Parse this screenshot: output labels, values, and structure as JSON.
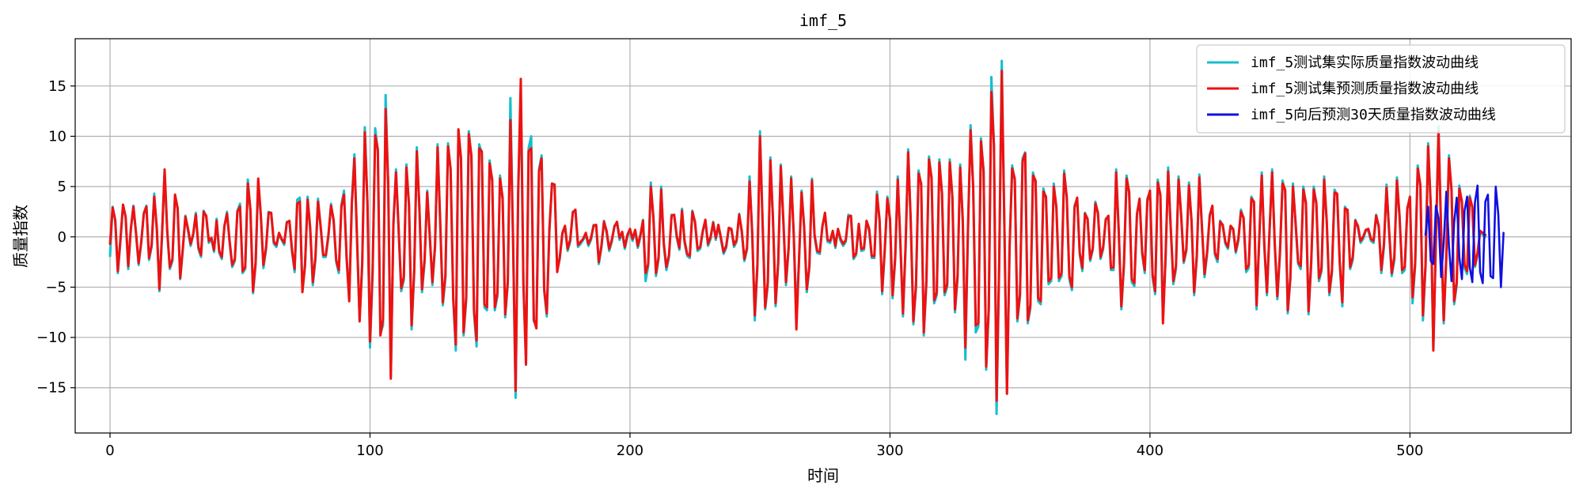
{
  "chart_data": {
    "type": "line",
    "title": "imf_5",
    "xlabel": "时间",
    "ylabel": "质量指数",
    "xlim": [
      -13.4,
      562
    ],
    "ylim": [
      -19.5,
      19.7
    ],
    "xticks": [
      0,
      100,
      200,
      300,
      400,
      500
    ],
    "yticks": [
      -15,
      -10,
      -5,
      0,
      5,
      10,
      15
    ],
    "grid": true,
    "legend_position": "top-right",
    "series": [
      {
        "name": "imf_5测试集实际质量指数波动曲线",
        "color": "#17becf",
        "x_start": 0,
        "values": [
          -1.9,
          3.0,
          1.6,
          -3.6,
          -0.5,
          3.2,
          1.9,
          -3.2,
          0.7,
          3.1,
          0.3,
          -2.8,
          -0.6,
          2.4,
          3.1,
          -2.3,
          -1.0,
          4.3,
          0.6,
          -5.4,
          0.0,
          6.4,
          0.5,
          -3.2,
          -2.4,
          4.1,
          2.9,
          -4.2,
          -1.3,
          2.1,
          0.6,
          -0.9,
          0.2,
          2.4,
          -1.2,
          -2.0,
          2.6,
          2.0,
          -0.6,
          -0.2,
          -1.5,
          1.8,
          -1.6,
          -2.2,
          1.0,
          2.5,
          -0.6,
          -3.0,
          -2.4,
          2.6,
          3.3,
          -3.6,
          -3.2,
          5.7,
          2.6,
          -5.6,
          -2.8,
          5.4,
          2.0,
          -3.1,
          -1.3,
          2.5,
          2.3,
          -0.7,
          -1.0,
          0.3,
          -0.3,
          -0.8,
          1.5,
          1.5,
          -1.5,
          -3.5,
          3.7,
          3.9,
          -5.2,
          -3.0,
          4.0,
          0.6,
          -4.8,
          -2.3,
          3.8,
          0.9,
          -2.0,
          -2.0,
          0.0,
          3.3,
          1.5,
          -2.5,
          -3.6,
          3.2,
          4.6,
          -2.3,
          -6.2,
          3.5,
          8.2,
          -0.3,
          -8.1,
          -2.9,
          10.9,
          3.3,
          -11.0,
          -3.6,
          10.8,
          8.5,
          -9.6,
          -8.8,
          14.1,
          5.0,
          -13.9,
          1.1,
          6.7,
          0.6,
          -5.4,
          -4.3,
          7.2,
          3.0,
          -9.2,
          -3.6,
          8.9,
          2.7,
          -5.5,
          -2.5,
          4.6,
          -0.1,
          -4.8,
          -1.1,
          9.2,
          1.3,
          -6.8,
          -4.1,
          9.3,
          6.6,
          -6.2,
          -11.3,
          10.6,
          7.9,
          -9.8,
          -6.3,
          10.5,
          7.9,
          -7.6,
          -10.9,
          9.2,
          8.3,
          -7.0,
          -7.3,
          7.6,
          5.5,
          -7.3,
          -5.9,
          6.1,
          3.7,
          -8.0,
          -4.7,
          13.8,
          -0.2,
          -16.0,
          4.3,
          13.9,
          -4.8,
          -12.0,
          8.8,
          10.0,
          -8.4,
          -8.7,
          6.7,
          8.1,
          -5.4,
          -7.9,
          0.6,
          5.2,
          5.0,
          -3.3,
          -2.2,
          0.3,
          1.0,
          -1.4,
          -0.5,
          2.5,
          2.6,
          -1.0,
          -0.7,
          -0.3,
          0.2,
          -0.9,
          -0.3,
          1.2,
          1.1,
          -2.7,
          -1.1,
          1.6,
          0.4,
          -1.4,
          -0.5,
          1.1,
          1.4,
          -0.3,
          0.4,
          -1.2,
          0.0,
          0.6,
          -0.4,
          0.6,
          -1.1,
          0.0,
          1.7,
          -4.4,
          -2.9,
          5.4,
          1.8,
          -3.9,
          -2.2,
          5.0,
          -0.9,
          -3.3,
          -2.0,
          2.2,
          2.1,
          -0.1,
          -1.3,
          2.8,
          -0.6,
          -1.9,
          -2.1,
          2.6,
          1.4,
          -1.4,
          -1.2,
          0.5,
          1.6,
          -0.9,
          -0.2,
          1.5,
          -0.3,
          1.1,
          -0.3,
          -1.7,
          -1.1,
          0.8,
          0.7,
          -1.0,
          -0.5,
          2.3,
          0.4,
          -2.4,
          -1.3,
          6.0,
          0.3,
          -8.3,
          -3.1,
          10.5,
          1.3,
          -7.2,
          -4.8,
          7.9,
          1.6,
          -6.9,
          -2.8,
          7.2,
          1.4,
          -4.8,
          -1.3,
          6.0,
          0.0,
          -7.4,
          -2.6,
          4.6,
          0.8,
          -5.5,
          -3.1,
          5.8,
          0.0,
          -1.6,
          -1.7,
          1.1,
          2.3,
          -0.5,
          -0.6,
          0.5,
          -1.1,
          0.7,
          -0.4,
          -0.9,
          -0.5,
          2.2,
          2.0,
          -2.2,
          -1.8,
          1.2,
          -1.4,
          -1.3,
          1.5,
          0.6,
          -2.1,
          -2.1,
          4.5,
          1.5,
          -5.7,
          -1.4,
          4.0,
          1.6,
          -6.1,
          -2.3,
          6.0,
          -0.8,
          -7.9,
          -1.2,
          8.7,
          1.3,
          -8.7,
          -5.1,
          6.6,
          5.1,
          -9.8,
          -4.7,
          8.0,
          5.7,
          -6.6,
          -5.8,
          7.7,
          4.2,
          -5.8,
          -5.0,
          7.7,
          3.8,
          -7.5,
          -4.1,
          7.2,
          1.4,
          -12.2,
          0.5,
          11.1,
          4.8,
          -9.5,
          -8.9,
          9.8,
          6.4,
          -13.2,
          -7.3,
          15.9,
          8.9,
          -17.6,
          -3.0,
          17.5,
          1.1,
          -15.5,
          -1.2,
          7.1,
          5.6,
          -8.4,
          -6.0,
          7.8,
          8.4,
          -8.6,
          -7.1,
          6.4,
          5.4,
          -6.4,
          -6.7,
          4.8,
          3.8,
          -4.7,
          -4.4,
          5.3,
          2.8,
          -4.4,
          -3.9,
          6.6,
          3.8,
          -4.2,
          -5.3,
          3.1,
          3.8,
          -1.8,
          -3.4,
          2.4,
          1.7,
          -2.4,
          -1.3,
          3.5,
          2.3,
          -2.2,
          -1.2,
          1.8,
          2.0,
          -3.3,
          -3.3,
          6.7,
          0.3,
          -7.2,
          -2.9,
          6.1,
          4.3,
          -4.5,
          -4.9,
          2.3,
          3.7,
          -1.7,
          -3.6,
          3.8,
          4.5,
          -4.0,
          -5.7,
          5.7,
          4.0,
          -8.2,
          -2.3,
          6.9,
          0.7,
          -4.7,
          -3.2,
          6.0,
          2.0,
          -2.6,
          -1.4,
          5.4,
          1.4,
          -5.8,
          -2.2,
          6.2,
          0.8,
          -4.0,
          -1.7,
          2.2,
          3.0,
          -1.8,
          -2.5,
          1.6,
          1.1,
          -0.7,
          -1.2,
          1.0,
          0.7,
          -1.6,
          -0.4,
          2.7,
          1.8,
          -3.5,
          -3.1,
          4.0,
          3.4,
          -7.2,
          -0.7,
          6.4,
          -1.1,
          -5.8,
          0.5,
          6.7,
          -0.9,
          -6.2,
          -1.8,
          5.6,
          4.5,
          -7.6,
          -4.3,
          5.3,
          1.3,
          -2.7,
          -3.2,
          5.0,
          3.2,
          -7.7,
          -2.9,
          5.0,
          3.2,
          -4.4,
          -3.4,
          6.0,
          1.4,
          -5.8,
          -3.6,
          4.7,
          4.1,
          -2.7,
          -6.9,
          3.0,
          2.5,
          -3.2,
          -2.3,
          1.7,
          0.9,
          -0.6,
          -0.2,
          0.6,
          0.6,
          -0.4,
          -0.6,
          2.2,
          0.9,
          -3.6,
          -1.0,
          5.2,
          0.4,
          -3.9,
          -2.3,
          5.9,
          1.9,
          -3.6,
          -3.3,
          2.9,
          3.8,
          -6.6,
          -2.9,
          7.1,
          5.0,
          -8.3,
          -3.0,
          9.3,
          3.0,
          -11.1,
          -0.4,
          11.0,
          0.3,
          -8.6,
          -2.1,
          8.1,
          4.5,
          -6.7,
          -4.8,
          5.1,
          3.3,
          -3.1,
          -3.7,
          4.1,
          2.9,
          -3.0,
          -1.9,
          0.5,
          0.2,
          0.0
        ]
      },
      {
        "name": "imf_5测试集预测质量指数波动曲线",
        "color": "#ee1111",
        "x_start": 0,
        "values": [
          -0.7,
          2.9,
          1.7,
          -3.4,
          -0.2,
          3.2,
          2.0,
          -2.9,
          0.8,
          3.0,
          0.4,
          -2.6,
          -0.5,
          2.3,
          3.0,
          -2.1,
          -0.8,
          4.0,
          0.9,
          -5.2,
          0.3,
          6.7,
          0.6,
          -3.0,
          -2.2,
          4.2,
          2.8,
          -4.1,
          -1.1,
          2.0,
          0.8,
          -0.7,
          0.3,
          2.2,
          -1.0,
          -1.8,
          2.5,
          2.1,
          -0.4,
          -0.1,
          -1.3,
          1.6,
          -1.4,
          -2.0,
          1.1,
          2.3,
          -0.4,
          -2.8,
          -2.2,
          2.5,
          3.0,
          -3.4,
          -3.0,
          5.3,
          2.7,
          -5.4,
          -2.5,
          5.8,
          2.2,
          -2.8,
          -1.1,
          2.4,
          2.4,
          -0.5,
          -0.8,
          0.4,
          -0.2,
          -0.6,
          1.4,
          1.6,
          -1.3,
          -3.2,
          3.3,
          3.5,
          -5.5,
          -2.8,
          3.7,
          0.9,
          -4.5,
          -2.0,
          3.5,
          1.1,
          -1.8,
          -1.8,
          0.2,
          3.1,
          1.7,
          -2.3,
          -3.3,
          3.0,
          4.2,
          -2.0,
          -6.4,
          3.2,
          7.8,
          0.0,
          -8.4,
          -2.6,
          10.4,
          3.5,
          -10.4,
          -3.3,
          10.1,
          8.7,
          -9.8,
          -8.2,
          12.7,
          5.3,
          -14.1,
          1.4,
          6.4,
          0.9,
          -5.1,
          -4.0,
          6.9,
          3.2,
          -8.8,
          -3.3,
          8.5,
          2.9,
          -5.2,
          -2.2,
          4.4,
          0.1,
          -4.5,
          -0.9,
          8.9,
          1.5,
          -6.5,
          -3.8,
          9.0,
          6.8,
          -6.0,
          -10.7,
          10.7,
          7.7,
          -9.5,
          -6.0,
          10.2,
          8.1,
          -7.3,
          -10.3,
          8.8,
          8.5,
          -6.7,
          -7.0,
          7.3,
          5.7,
          -7.0,
          -5.6,
          5.8,
          3.9,
          -7.7,
          -4.4,
          11.6,
          0.1,
          -15.3,
          4.6,
          15.7,
          -4.5,
          -12.7,
          8.5,
          8.8,
          -8.2,
          -9.1,
          6.5,
          7.8,
          -5.2,
          -7.6,
          0.8,
          5.3,
          5.2,
          -3.5,
          -2.0,
          0.4,
          1.1,
          -1.2,
          -0.3,
          2.4,
          2.7,
          -0.8,
          -0.5,
          -0.2,
          0.4,
          -0.7,
          -0.1,
          1.1,
          1.2,
          -2.5,
          -0.9,
          1.5,
          0.6,
          -1.2,
          -0.3,
          1.0,
          1.5,
          -0.1,
          0.5,
          -1.0,
          0.2,
          0.8,
          -0.2,
          0.7,
          -0.9,
          0.2,
          1.6,
          -3.6,
          -2.7,
          5.0,
          2.0,
          -3.6,
          -2.0,
          4.7,
          -0.6,
          -3.0,
          -1.8,
          2.1,
          2.2,
          0.1,
          -1.1,
          2.6,
          -0.4,
          -1.7,
          -1.9,
          2.5,
          1.5,
          -1.2,
          -1.0,
          0.6,
          1.7,
          -0.7,
          0.0,
          1.4,
          -0.1,
          1.2,
          -0.1,
          -1.5,
          -0.9,
          0.9,
          0.8,
          -0.8,
          -0.3,
          2.2,
          0.6,
          -2.2,
          -1.1,
          5.5,
          0.5,
          -7.8,
          -2.8,
          10.0,
          1.5,
          -7.0,
          -4.5,
          7.6,
          1.8,
          -6.6,
          -2.5,
          7.0,
          1.6,
          -4.5,
          -1.1,
          5.8,
          0.2,
          -9.2,
          -2.3,
          4.4,
          1.0,
          -5.2,
          -2.9,
          5.6,
          0.2,
          -1.4,
          -1.5,
          1.0,
          2.4,
          -0.3,
          -0.4,
          0.6,
          -0.9,
          0.8,
          -0.2,
          -0.7,
          -0.3,
          2.0,
          2.1,
          -2.0,
          -1.6,
          1.3,
          -1.2,
          -1.1,
          1.6,
          0.8,
          -1.9,
          -1.9,
          4.2,
          1.7,
          -5.4,
          -1.2,
          3.8,
          1.8,
          -5.8,
          -2.0,
          5.7,
          -0.5,
          -7.6,
          -0.9,
          8.4,
          1.5,
          -8.4,
          -4.8,
          6.3,
          5.3,
          -9.5,
          -4.4,
          7.7,
          5.9,
          -6.3,
          -5.5,
          7.4,
          4.4,
          -5.5,
          -4.7,
          7.4,
          4.0,
          -7.2,
          -3.8,
          6.9,
          1.7,
          -11.0,
          0.8,
          10.6,
          5.0,
          -8.8,
          -8.6,
          9.5,
          6.6,
          -12.9,
          -7.0,
          14.4,
          9.1,
          -16.3,
          -2.7,
          16.5,
          1.3,
          -15.6,
          -1.0,
          6.8,
          5.8,
          -8.1,
          -5.7,
          7.5,
          8.3,
          -8.3,
          -6.8,
          6.1,
          5.6,
          -6.1,
          -6.4,
          4.5,
          4.0,
          -4.4,
          -4.1,
          5.0,
          3.0,
          -4.1,
          -3.6,
          6.3,
          4.0,
          -3.9,
          -5.0,
          2.9,
          3.9,
          -1.6,
          -3.1,
          2.3,
          1.8,
          -2.2,
          -1.1,
          3.3,
          2.4,
          -2.0,
          -1.0,
          1.7,
          2.1,
          -3.1,
          -3.0,
          6.4,
          0.6,
          -6.9,
          -2.6,
          5.8,
          4.5,
          -4.2,
          -4.6,
          2.2,
          3.8,
          -1.5,
          -3.3,
          3.6,
          4.6,
          -3.7,
          -5.4,
          5.4,
          4.2,
          -8.6,
          -2.0,
          6.5,
          0.9,
          -4.4,
          -2.9,
          5.7,
          2.2,
          -2.4,
          -1.2,
          5.1,
          1.6,
          -5.5,
          -1.9,
          5.9,
          1.0,
          -3.7,
          -1.4,
          2.1,
          3.1,
          -1.6,
          -2.2,
          1.5,
          1.2,
          -0.5,
          -1.0,
          1.1,
          0.8,
          -1.4,
          -0.2,
          2.5,
          1.9,
          -3.2,
          -2.8,
          3.8,
          3.5,
          -6.8,
          -0.4,
          6.1,
          -0.8,
          -5.5,
          0.7,
          6.4,
          -0.6,
          -5.9,
          -1.5,
          5.3,
          4.7,
          -7.3,
          -4.0,
          5.0,
          1.5,
          -2.5,
          -2.9,
          4.7,
          3.4,
          -7.4,
          -2.6,
          4.7,
          3.4,
          -4.1,
          -3.1,
          5.7,
          1.6,
          -5.5,
          -3.3,
          4.4,
          4.3,
          -2.5,
          -6.5,
          2.8,
          2.7,
          -3.0,
          -2.0,
          1.6,
          1.1,
          -0.4,
          0.0,
          0.7,
          0.8,
          -0.2,
          -0.4,
          2.1,
          1.1,
          -3.3,
          -0.7,
          4.9,
          0.6,
          -3.6,
          -2.0,
          5.6,
          2.1,
          -3.3,
          -3.0,
          2.8,
          4.0,
          -6.0,
          -2.6,
          6.8,
          5.2,
          -7.8,
          -2.7,
          9.0,
          3.2,
          -11.3,
          -0.1,
          10.5,
          0.6,
          -8.3,
          -1.8,
          7.8,
          4.7,
          -6.4,
          -4.5,
          4.8,
          3.5,
          -2.8,
          -3.4,
          3.9,
          3.0,
          -2.8,
          -1.6,
          0.6,
          0.4,
          0.2
        ]
      },
      {
        "name": "imf_5向后预测30天质量指数波动曲线",
        "color": "#1010e0",
        "x_start": 506,
        "values": [
          0.2,
          3.0,
          -2.4,
          -2.7,
          3.1,
          1.8,
          -4.0,
          -0.6,
          4.5,
          -0.9,
          -4.4,
          1.4,
          3.9,
          -2.0,
          -4.2,
          2.6,
          4.0,
          -3.0,
          -4.5,
          3.4,
          5.1,
          -3.5,
          -4.6,
          3.5,
          4.2,
          -3.9,
          -4.1,
          5.0,
          2.2,
          -5.0,
          0.4
        ]
      }
    ]
  }
}
